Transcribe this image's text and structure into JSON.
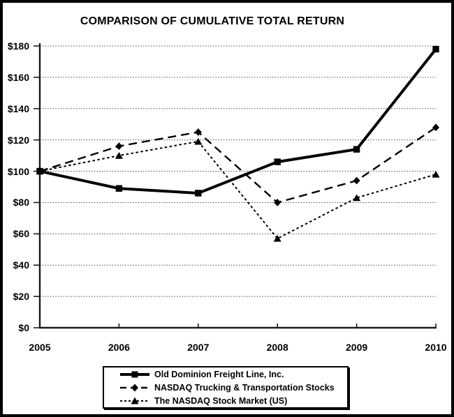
{
  "chart_data": {
    "type": "line",
    "title": "COMPARISON OF CUMULATIVE TOTAL RETURN",
    "x": [
      2005,
      2006,
      2007,
      2008,
      2009,
      2010
    ],
    "x_tick_labels": [
      "2005",
      "2006",
      "2007",
      "2008",
      "2009",
      "2010"
    ],
    "y_tick_labels": [
      "$0",
      "$20",
      "$40",
      "$60",
      "$80",
      "$100",
      "$120",
      "$140",
      "$160",
      "$180"
    ],
    "y_tick_values": [
      0,
      20,
      40,
      60,
      80,
      100,
      120,
      140,
      160,
      180
    ],
    "ylim": [
      0,
      180
    ],
    "xlabel": "",
    "ylabel": "",
    "grid": "horizontal dotted gridlines at $20 intervals",
    "legend_position": "bottom center, boxed",
    "series": [
      {
        "name": "Old Dominion Freight Line, Inc.",
        "marker": "square",
        "line_style": "solid-thick",
        "values": [
          100,
          89,
          86,
          106,
          114,
          178
        ]
      },
      {
        "name": "NASDAQ Trucking & Transportation Stocks",
        "marker": "diamond",
        "line_style": "dashed",
        "values": [
          100,
          116,
          125,
          80,
          94,
          128
        ]
      },
      {
        "name": "The NASDAQ Stock Market (US)",
        "marker": "triangle",
        "line_style": "dotted",
        "values": [
          100,
          110,
          119,
          57,
          83,
          98
        ]
      }
    ],
    "colors": {
      "series": "#000000",
      "grid": "#4a4a4a",
      "axis": "#1a1a1a",
      "background": "#ffffff",
      "frame": "#000000"
    }
  }
}
